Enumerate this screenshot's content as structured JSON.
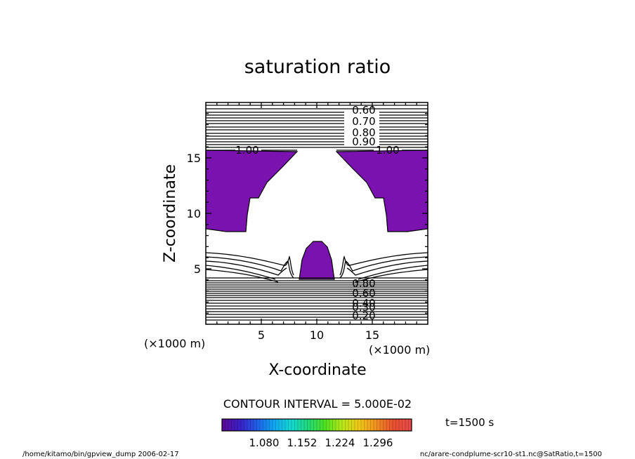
{
  "chart_data": {
    "type": "contour",
    "title": "saturation ratio",
    "xlabel": "X-coordinate",
    "ylabel": "Z-coordinate",
    "x_unit": "(×1000 m)",
    "y_unit": "(×1000 m)",
    "xlim": [
      0,
      20
    ],
    "ylim": [
      0,
      20
    ],
    "x_ticks": [
      "5",
      "10",
      "15"
    ],
    "y_ticks": [
      "5",
      "10",
      "15"
    ],
    "contour_interval_label": "CONTOUR INTERVAL = 5.000E-02",
    "contour_labels_upper": [
      "0.60",
      "0.70",
      "0.80",
      "0.90"
    ],
    "contour_label_level_1": "1.00",
    "contour_labels_lower": [
      "0.80",
      "0.60",
      "0.40",
      "0.30",
      "0.20"
    ],
    "colorbar": {
      "ticks": [
        "1.080",
        "1.152",
        "1.224",
        "1.296"
      ],
      "colors": [
        "#5a0a9a",
        "#3a20c8",
        "#1e60e8",
        "#10a8f0",
        "#14d8d0",
        "#20d878",
        "#50e020",
        "#b8e818",
        "#f0c818",
        "#f09020",
        "#e85030",
        "#e84848"
      ]
    },
    "time_label": "t=1500 s",
    "fill_color": "#7a12b0"
  },
  "footer": {
    "left": "/home/kitamo/bin/gpview_dump  2006-02-17",
    "right": "nc/arare-condplume-scr10-st1.nc@SatRatio,t=1500"
  }
}
